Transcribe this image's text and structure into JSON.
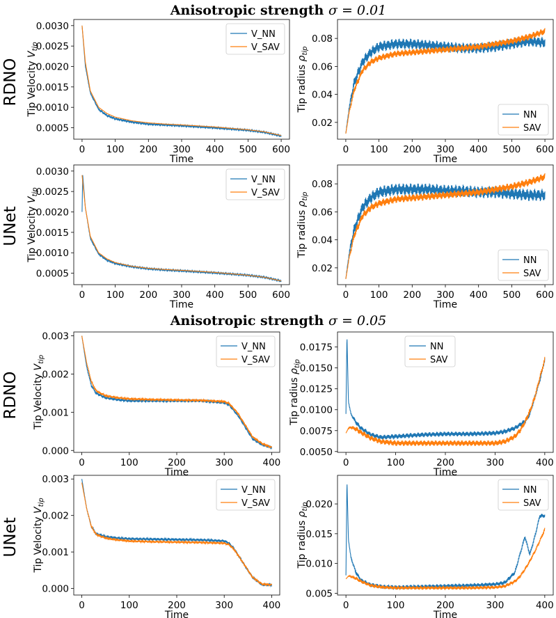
{
  "section_titles": [
    {
      "prefix": "Anisotropic strength",
      "symbol": "σ = 0.01"
    },
    {
      "prefix": "Anisotropic strength",
      "symbol": "σ = 0.05"
    }
  ],
  "row_labels": [
    "RDNO",
    "UNet",
    "RDNO",
    "UNet"
  ],
  "colors": {
    "nn": "#1f77b4",
    "sav": "#ff7f0e"
  },
  "chart_data": [
    {
      "id": "v-rdno-001",
      "type": "line",
      "section": "σ = 0.01",
      "model": "RDNO",
      "xlabel": "Time",
      "ylabel": "Tip Velocity V_tip",
      "xlim": [
        -25,
        625
      ],
      "ylim": [
        0.00022,
        0.00315
      ],
      "xticks": [
        0,
        100,
        200,
        300,
        400,
        500,
        600
      ],
      "yticks": [
        0.0005,
        0.001,
        0.0015,
        0.002,
        0.0025,
        0.003
      ],
      "ytick_labels": [
        "0.0005",
        "0.0010",
        "0.0015",
        "0.0020",
        "0.0025",
        "0.0030"
      ],
      "legend": "upper-right",
      "series": [
        {
          "name": "V_NN",
          "color": "#1f77b4",
          "x": [
            0,
            10,
            25,
            50,
            75,
            100,
            150,
            200,
            250,
            300,
            400,
            500,
            550,
            600
          ],
          "y": [
            0.003,
            0.002,
            0.00135,
            0.00095,
            0.0008,
            0.00072,
            0.00064,
            0.00059,
            0.00057,
            0.00055,
            0.0005,
            0.00044,
            0.00039,
            0.0003
          ],
          "noise": 2e-05
        },
        {
          "name": "V_SAV",
          "color": "#ff7f0e",
          "x": [
            0,
            10,
            25,
            50,
            75,
            100,
            150,
            200,
            250,
            300,
            400,
            500,
            550,
            600
          ],
          "y": [
            0.003,
            0.0021,
            0.0014,
            0.001,
            0.00085,
            0.00076,
            0.00067,
            0.00062,
            0.00059,
            0.00057,
            0.00052,
            0.00045,
            0.0004,
            0.00031
          ],
          "noise": 0
        }
      ]
    },
    {
      "id": "r-rdno-001",
      "type": "line",
      "section": "σ = 0.01",
      "model": "RDNO",
      "xlabel": "Time",
      "ylabel": "Tip radius ρ_tip",
      "xlim": [
        -25,
        625
      ],
      "ylim": [
        0.008,
        0.0935
      ],
      "xticks": [
        0,
        100,
        200,
        300,
        400,
        500,
        600
      ],
      "yticks": [
        0.02,
        0.04,
        0.06,
        0.08
      ],
      "ytick_labels": [
        "0.02",
        "0.04",
        "0.06",
        "0.08"
      ],
      "legend": "lower-right",
      "series": [
        {
          "name": "NN",
          "color": "#1f77b4",
          "x": [
            0,
            10,
            25,
            50,
            75,
            100,
            150,
            200,
            250,
            300,
            350,
            400,
            450,
            500,
            550,
            600
          ],
          "y": [
            0.012,
            0.03,
            0.048,
            0.063,
            0.07,
            0.074,
            0.076,
            0.076,
            0.075,
            0.074,
            0.073,
            0.073,
            0.074,
            0.076,
            0.078,
            0.077
          ],
          "noise": 0.004
        },
        {
          "name": "SAV",
          "color": "#ff7f0e",
          "x": [
            0,
            10,
            25,
            50,
            75,
            100,
            150,
            200,
            250,
            300,
            350,
            400,
            450,
            500,
            550,
            600
          ],
          "y": [
            0.012,
            0.027,
            0.043,
            0.057,
            0.063,
            0.066,
            0.069,
            0.07,
            0.071,
            0.072,
            0.073,
            0.074,
            0.076,
            0.078,
            0.081,
            0.085
          ],
          "noise": 0.0025
        }
      ]
    },
    {
      "id": "v-unet-001",
      "type": "line",
      "section": "σ = 0.01",
      "model": "UNet",
      "xlabel": "Time",
      "ylabel": "Tip Velocity V_tip",
      "xlim": [
        -25,
        625
      ],
      "ylim": [
        0.00022,
        0.00315
      ],
      "xticks": [
        0,
        100,
        200,
        300,
        400,
        500,
        600
      ],
      "yticks": [
        0.0005,
        0.001,
        0.0015,
        0.002,
        0.0025,
        0.003
      ],
      "ytick_labels": [
        "0.0005",
        "0.0010",
        "0.0015",
        "0.0020",
        "0.0025",
        "0.0030"
      ],
      "legend": "upper-right",
      "series": [
        {
          "name": "V_NN",
          "color": "#1f77b4",
          "x": [
            0,
            2,
            10,
            25,
            50,
            75,
            100,
            150,
            200,
            250,
            300,
            400,
            500,
            550,
            600
          ],
          "y": [
            0.002,
            0.0029,
            0.0021,
            0.00135,
            0.00097,
            0.00082,
            0.00074,
            0.00066,
            0.00061,
            0.00058,
            0.00056,
            0.00051,
            0.00045,
            0.0004,
            0.00031
          ],
          "noise": 2e-05
        },
        {
          "name": "V_SAV",
          "color": "#ff7f0e",
          "x": [
            0,
            10,
            25,
            50,
            75,
            100,
            150,
            200,
            250,
            300,
            400,
            500,
            550,
            600
          ],
          "y": [
            0.0029,
            0.0021,
            0.0014,
            0.001,
            0.00085,
            0.00076,
            0.00067,
            0.00062,
            0.00059,
            0.00057,
            0.00052,
            0.00045,
            0.0004,
            0.00031
          ],
          "noise": 0
        }
      ]
    },
    {
      "id": "r-unet-001",
      "type": "line",
      "section": "σ = 0.01",
      "model": "UNet",
      "xlabel": "Time",
      "ylabel": "Tip radius ρ_tip",
      "xlim": [
        -25,
        625
      ],
      "ylim": [
        0.008,
        0.0935
      ],
      "xticks": [
        0,
        100,
        200,
        300,
        400,
        500,
        600
      ],
      "yticks": [
        0.02,
        0.04,
        0.06,
        0.08
      ],
      "ytick_labels": [
        "0.02",
        "0.04",
        "0.06",
        "0.08"
      ],
      "legend": "lower-right",
      "series": [
        {
          "name": "NN",
          "color": "#1f77b4",
          "x": [
            0,
            10,
            25,
            50,
            75,
            100,
            150,
            200,
            250,
            300,
            350,
            400,
            450,
            500,
            550,
            600
          ],
          "y": [
            0.012,
            0.03,
            0.047,
            0.063,
            0.07,
            0.074,
            0.076,
            0.076,
            0.076,
            0.075,
            0.075,
            0.074,
            0.074,
            0.073,
            0.072,
            0.072
          ],
          "noise": 0.0045
        },
        {
          "name": "SAV",
          "color": "#ff7f0e",
          "x": [
            0,
            10,
            25,
            50,
            75,
            100,
            150,
            200,
            250,
            300,
            350,
            400,
            450,
            500,
            550,
            600
          ],
          "y": [
            0.012,
            0.027,
            0.043,
            0.057,
            0.063,
            0.066,
            0.069,
            0.07,
            0.071,
            0.072,
            0.073,
            0.074,
            0.076,
            0.078,
            0.081,
            0.085
          ],
          "noise": 0.0028
        }
      ]
    },
    {
      "id": "v-rdno-005",
      "type": "line",
      "section": "σ = 0.05",
      "model": "RDNO",
      "xlabel": "Time",
      "ylabel": "Tip Velocity V_tip",
      "xlim": [
        -17,
        417
      ],
      "ylim": [
        -5e-05,
        0.0031
      ],
      "xticks": [
        0,
        100,
        200,
        300,
        400
      ],
      "yticks": [
        0.0,
        0.001,
        0.002,
        0.003
      ],
      "ytick_labels": [
        "0.000",
        "0.001",
        "0.002",
        "0.003"
      ],
      "legend": "upper-right",
      "series": [
        {
          "name": "V_NN",
          "color": "#1f77b4",
          "x": [
            0,
            10,
            20,
            30,
            50,
            75,
            100,
            150,
            200,
            250,
            300,
            310,
            320,
            330,
            340,
            350,
            360,
            380,
            400
          ],
          "y": [
            0.003,
            0.0022,
            0.0017,
            0.0015,
            0.00138,
            0.00133,
            0.0013,
            0.0013,
            0.0013,
            0.0013,
            0.00125,
            0.0012,
            0.00105,
            0.0009,
            0.0007,
            0.0005,
            0.0003,
            0.00015,
            8e-05
          ],
          "noise": 4e-05
        },
        {
          "name": "V_SAV",
          "color": "#ff7f0e",
          "x": [
            0,
            10,
            20,
            30,
            50,
            75,
            100,
            150,
            200,
            250,
            300,
            310,
            320,
            330,
            340,
            350,
            360,
            380,
            400
          ],
          "y": [
            0.003,
            0.0023,
            0.0018,
            0.00156,
            0.00143,
            0.00138,
            0.00135,
            0.00133,
            0.00132,
            0.00131,
            0.00128,
            0.00123,
            0.0011,
            0.00095,
            0.00075,
            0.00055,
            0.00035,
            0.00018,
            8e-05
          ],
          "noise": 3e-05
        }
      ]
    },
    {
      "id": "r-rdno-005",
      "type": "line",
      "section": "σ = 0.05",
      "model": "RDNO",
      "xlabel": "Time",
      "ylabel": "Tip radius ρ_tip",
      "xlim": [
        -17,
        417
      ],
      "ylim": [
        0.0049,
        0.0193
      ],
      "xticks": [
        0,
        100,
        200,
        300,
        400
      ],
      "yticks": [
        0.005,
        0.0075,
        0.01,
        0.0125,
        0.015,
        0.0175
      ],
      "ytick_labels": [
        "0.0050",
        "0.0075",
        "0.0100",
        "0.0125",
        "0.0150",
        "0.0175"
      ],
      "legend": "upper-center",
      "series": [
        {
          "name": "NN",
          "color": "#1f77b4",
          "x": [
            0,
            2,
            5,
            10,
            20,
            30,
            50,
            70,
            100,
            150,
            200,
            250,
            300,
            320,
            340,
            350,
            360,
            370,
            380,
            390,
            400
          ],
          "y": [
            0.0095,
            0.019,
            0.011,
            0.0095,
            0.0085,
            0.0078,
            0.007,
            0.0067,
            0.0068,
            0.007,
            0.0071,
            0.0071,
            0.0072,
            0.0074,
            0.0078,
            0.0082,
            0.0086,
            0.0095,
            0.0115,
            0.0135,
            0.016
          ],
          "noise": 0.0003
        },
        {
          "name": "SAV",
          "color": "#ff7f0e",
          "x": [
            0,
            5,
            10,
            20,
            30,
            50,
            70,
            100,
            150,
            200,
            250,
            300,
            320,
            340,
            350,
            360,
            370,
            380,
            390,
            400
          ],
          "y": [
            0.0072,
            0.0078,
            0.0079,
            0.0077,
            0.0073,
            0.0066,
            0.0062,
            0.006,
            0.006,
            0.006,
            0.006,
            0.006,
            0.0062,
            0.0068,
            0.0075,
            0.0085,
            0.0098,
            0.0115,
            0.0138,
            0.016
          ],
          "noise": 0.00035
        }
      ]
    },
    {
      "id": "v-unet-005",
      "type": "line",
      "section": "σ = 0.05",
      "model": "UNet",
      "xlabel": "Time",
      "ylabel": "Tip Velocity V_tip",
      "xlim": [
        -17,
        417
      ],
      "ylim": [
        -0.00018,
        0.0031
      ],
      "xticks": [
        0,
        100,
        200,
        300,
        400
      ],
      "yticks": [
        0.0,
        0.001,
        0.002,
        0.003
      ],
      "ytick_labels": [
        "0.000",
        "0.001",
        "0.002",
        "0.003"
      ],
      "legend": "upper-right",
      "series": [
        {
          "name": "V_NN",
          "color": "#1f77b4",
          "x": [
            0,
            10,
            20,
            30,
            50,
            75,
            100,
            150,
            200,
            250,
            300,
            310,
            320,
            330,
            340,
            350,
            360,
            380,
            400
          ],
          "y": [
            0.003,
            0.0022,
            0.0017,
            0.0015,
            0.00142,
            0.00138,
            0.00136,
            0.00135,
            0.00134,
            0.00133,
            0.0013,
            0.00124,
            0.0011,
            0.0009,
            0.0007,
            0.0005,
            0.0003,
            0.0001,
            0.0001
          ],
          "noise": 4e-05
        },
        {
          "name": "V_SAV",
          "color": "#ff7f0e",
          "x": [
            0,
            10,
            20,
            30,
            50,
            75,
            100,
            150,
            200,
            250,
            300,
            310,
            320,
            330,
            340,
            350,
            360,
            380,
            400
          ],
          "y": [
            0.0029,
            0.0022,
            0.0017,
            0.00148,
            0.00138,
            0.00133,
            0.0013,
            0.00128,
            0.00127,
            0.00126,
            0.00124,
            0.0012,
            0.00108,
            0.0009,
            0.0007,
            0.0005,
            0.0003,
            0.00012,
            0.0001
          ],
          "noise": 3e-05
        }
      ]
    },
    {
      "id": "r-unet-005",
      "type": "line",
      "section": "σ = 0.05",
      "model": "UNet",
      "xlabel": "Time",
      "ylabel": "Tip radius ρ_tip",
      "xlim": [
        -17,
        417
      ],
      "ylim": [
        0.0047,
        0.0248
      ],
      "xticks": [
        0,
        100,
        200,
        300,
        400
      ],
      "yticks": [
        0.005,
        0.01,
        0.015,
        0.02
      ],
      "ytick_labels": [
        "0.005",
        "0.010",
        "0.015",
        "0.020"
      ],
      "legend": "upper-right",
      "series": [
        {
          "name": "NN",
          "color": "#1f77b4",
          "x": [
            0,
            2,
            5,
            10,
            20,
            30,
            50,
            75,
            100,
            150,
            200,
            250,
            300,
            320,
            340,
            350,
            360,
            370,
            380,
            390,
            400
          ],
          "y": [
            0.008,
            0.024,
            0.014,
            0.011,
            0.0085,
            0.0072,
            0.0064,
            0.0061,
            0.006,
            0.0061,
            0.0062,
            0.0063,
            0.0065,
            0.0068,
            0.0085,
            0.0115,
            0.0145,
            0.0115,
            0.0145,
            0.018,
            0.018
          ],
          "noise": 0.00035
        },
        {
          "name": "SAV",
          "color": "#ff7f0e",
          "x": [
            0,
            5,
            10,
            20,
            30,
            50,
            75,
            100,
            150,
            200,
            250,
            300,
            320,
            340,
            350,
            360,
            370,
            380,
            390,
            400
          ],
          "y": [
            0.0074,
            0.0079,
            0.0078,
            0.0075,
            0.007,
            0.0063,
            0.006,
            0.0059,
            0.0059,
            0.0059,
            0.0059,
            0.006,
            0.0062,
            0.007,
            0.0078,
            0.009,
            0.0104,
            0.012,
            0.0138,
            0.0157
          ],
          "noise": 0.0003
        }
      ]
    }
  ]
}
